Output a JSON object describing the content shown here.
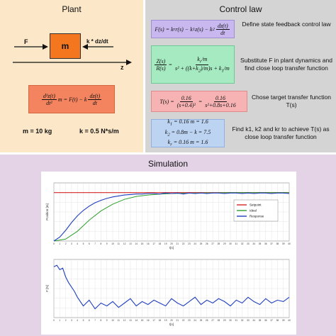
{
  "plant": {
    "title": "Plant",
    "force_label": "F",
    "damper_label": "k * dz/dt",
    "mass_label": "m",
    "axis_label": "z",
    "equation": "d²z(t)/dt² m = F(t) − k dz(t)/dt",
    "mass_value": "m = 10 kg",
    "damping_value": "k = 0.5 N*s/m",
    "colors": {
      "background": "#fce8c8",
      "mass": "#f4761f",
      "equation_box": "#f4845f"
    }
  },
  "control_law": {
    "title": "Control law",
    "rows": [
      {
        "equation": "F(s) = kr r(s) − k1 z(s) − k2 dz(t)/dt",
        "description": "Define state feedback control law",
        "color": "#c9b8f0"
      },
      {
        "equation": "Z(s)/R(s) = (kr/m) / (s² + ((k + k2)/m) s + k1/m)",
        "description": "Substitute F in plant dynamics and find close loop transfer function",
        "color": "#a6eac1"
      },
      {
        "equation": "T(s) = 0.16/(s + 0.4)² = 0.16/(s² + 0.8 s + 0.16)",
        "description": "Chose target transfer function T(s)",
        "color": "#f7b3b3"
      },
      {
        "equation": "k1 = 0.16 m = 1.6; k2 = 0.8m − k = 7.5; kr = 0.16 m = 1.6",
        "description": "Find k1, k2 and kr to achieve T(s) as close loop transfer function",
        "color": "#bcd3f2"
      }
    ],
    "colors": {
      "background": "#d4d4d4"
    }
  },
  "simulation": {
    "title": "Simulation",
    "colors": {
      "background": "#e4d2e6"
    }
  },
  "chart_data": [
    {
      "type": "line",
      "xlabel": "t[s]",
      "ylabel": "Position [m]",
      "xlim": [
        0,
        40
      ],
      "xticks": [
        "0",
        "1",
        "2",
        "3",
        "4",
        "5",
        "6",
        "7",
        "8",
        "9",
        "10",
        "11",
        "12",
        "13",
        "14",
        "15",
        "16",
        "17",
        "18",
        "19",
        "20",
        "21",
        "22",
        "23",
        "24",
        "25",
        "26",
        "27",
        "28",
        "29",
        "30",
        "31",
        "32",
        "33",
        "34",
        "35",
        "36",
        "37",
        "38",
        "39",
        "40"
      ],
      "legend_position": "right",
      "series": [
        {
          "name": "Setpoint",
          "color": "#d62728",
          "x": [
            0,
            40
          ],
          "y": [
            1,
            1
          ]
        },
        {
          "name": "Ideal",
          "color": "#2ca02c",
          "x": [
            0,
            2,
            4,
            6,
            8,
            10,
            12,
            14,
            16,
            18,
            20,
            25,
            30,
            35,
            40
          ],
          "y": [
            0,
            0.04,
            0.2,
            0.43,
            0.62,
            0.76,
            0.86,
            0.92,
            0.95,
            0.97,
            0.98,
            0.99,
            1,
            1,
            1
          ]
        },
        {
          "name": "Response",
          "color": "#1f3fbf",
          "x": [
            0,
            1,
            2,
            3,
            4,
            5,
            6,
            7,
            8,
            9,
            10,
            11,
            12,
            13,
            14,
            15,
            16,
            17,
            18,
            19,
            20,
            21,
            22,
            23,
            24,
            25,
            26,
            27,
            28,
            29,
            30,
            31,
            32,
            33,
            34,
            35,
            36,
            37,
            38,
            39,
            40
          ],
          "y": [
            0,
            0.08,
            0.22,
            0.38,
            0.52,
            0.63,
            0.72,
            0.79,
            0.84,
            0.88,
            0.91,
            0.93,
            0.95,
            0.96,
            0.97,
            0.97,
            0.98,
            0.98,
            0.97,
            0.99,
            0.98,
            0.99,
            0.97,
            0.99,
            0.98,
            0.99,
            0.98,
            0.99,
            0.99,
            0.98,
            0.99,
            0.99,
            0.98,
            0.99,
            0.98,
            0.99,
            0.99,
            0.98,
            0.99,
            0.99,
            0.98
          ]
        }
      ]
    },
    {
      "type": "line",
      "xlabel": "t[s]",
      "ylabel": "F [N]",
      "xlim": [
        0,
        40
      ],
      "xticks": [
        "0",
        "1",
        "2",
        "3",
        "4",
        "5",
        "6",
        "7",
        "8",
        "9",
        "10",
        "11",
        "12",
        "13",
        "14",
        "15",
        "16",
        "17",
        "18",
        "19",
        "20",
        "21",
        "22",
        "23",
        "24",
        "25",
        "26",
        "27",
        "28",
        "29",
        "30",
        "31",
        "32",
        "33",
        "34",
        "35",
        "36",
        "37",
        "38",
        "39",
        "40"
      ],
      "series": [
        {
          "name": "",
          "color": "#1f3fbf",
          "x": [
            0,
            0.5,
            1,
            1.5,
            2,
            2.5,
            3,
            3.5,
            4,
            5,
            6,
            7,
            8,
            9,
            10,
            11,
            12,
            13,
            14,
            15,
            16,
            17,
            18,
            19,
            20,
            21,
            22,
            23,
            24,
            25,
            26,
            27,
            28,
            29,
            30,
            31,
            32,
            33,
            34,
            35,
            36,
            37,
            38,
            39,
            40
          ],
          "y": [
            1.55,
            1.6,
            1.45,
            1.5,
            1.2,
            1.0,
            0.85,
            0.7,
            0.5,
            0.2,
            0.4,
            0.1,
            0.3,
            0.2,
            0.35,
            0.15,
            0.3,
            0.45,
            0.2,
            0.35,
            0.25,
            0.4,
            0.3,
            0.2,
            0.45,
            0.3,
            0.2,
            0.35,
            0.5,
            0.25,
            0.4,
            0.3,
            0.45,
            0.35,
            0.2,
            0.4,
            0.3,
            0.5,
            0.35,
            0.25,
            0.45,
            0.3,
            0.4,
            0.35,
            0.5
          ]
        }
      ]
    }
  ]
}
